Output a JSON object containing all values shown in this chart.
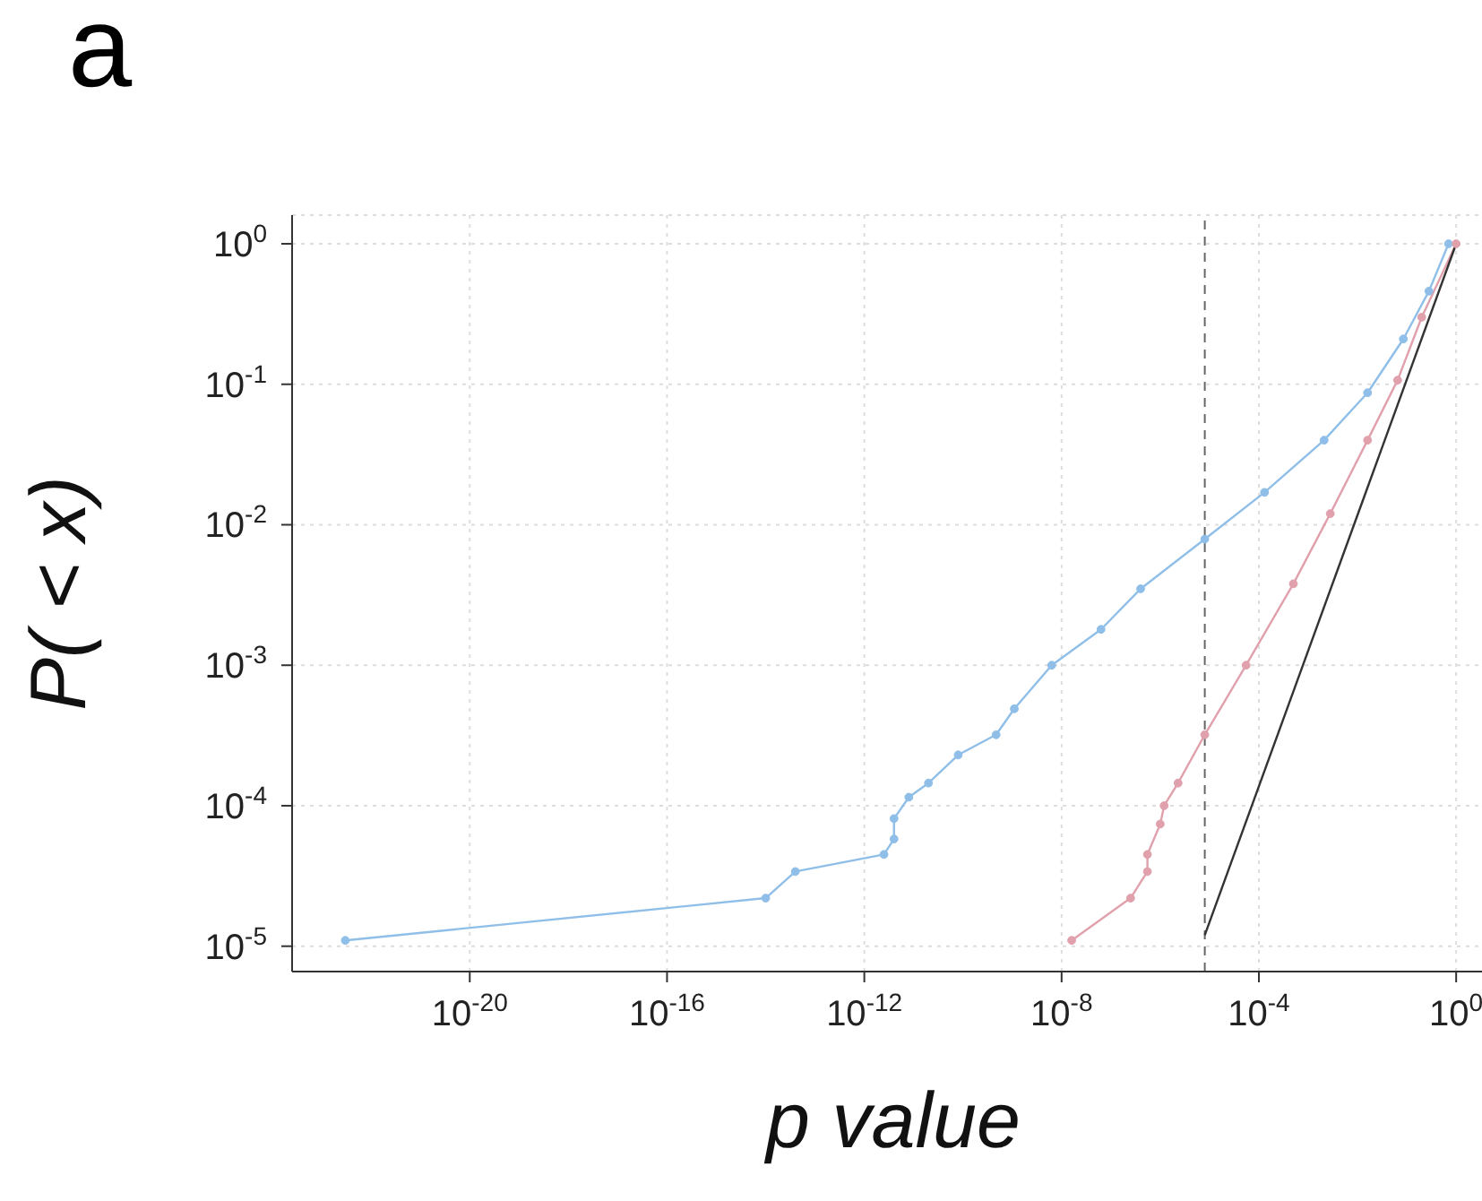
{
  "chart_data": {
    "type": "line",
    "xlabel": "p value",
    "ylabel": "P( < x)",
    "annotations": [
      "a"
    ],
    "log": "xy",
    "grid": true,
    "marker": "circle",
    "line_style": "solid",
    "xlim": [
      2.5e-24,
      6
    ],
    "ylim": [
      6.6e-06,
      1.6
    ],
    "xticks": [
      {
        "value": 1e-20,
        "label": "10$^{-20}$"
      },
      {
        "value": 1e-16,
        "label": "10$^{-16}$"
      },
      {
        "value": 1e-12,
        "label": "10$^{-12}$"
      },
      {
        "value": 1e-08,
        "label": "10$^{-8}$"
      },
      {
        "value": 0.0001,
        "label": "10$^{-4}$"
      },
      {
        "value": 1,
        "label": "10$^{0}$"
      }
    ],
    "yticks": [
      {
        "value": 1e-05,
        "label": "10$^{-5}$"
      },
      {
        "value": 0.0001,
        "label": "10$^{-4}$"
      },
      {
        "value": 0.001,
        "label": "10$^{-3}$"
      },
      {
        "value": 0.01,
        "label": "10$^{-2}$"
      },
      {
        "value": 0.1,
        "label": "10$^{-1}$"
      },
      {
        "value": 1,
        "label": "10$^{0}$"
      }
    ],
    "ref_lines": [
      {
        "axis": "x",
        "value": 8e-06,
        "color": "#666666",
        "line_style": "dashed"
      }
    ],
    "series": [
      {
        "color": "#8fbfe8",
        "x": [
          3e-23,
          1e-14,
          4e-14,
          2.5e-12,
          4e-12,
          4e-12,
          8e-12,
          2e-11,
          8e-11,
          4.7e-10,
          1.1e-09,
          6.3e-09,
          6.3e-08,
          4e-07,
          8e-06,
          0.00013,
          0.0021,
          0.016,
          0.085,
          0.28,
          0.7
        ],
        "values": [
          1.1e-05,
          2.2e-05,
          3.4e-05,
          4.5e-05,
          5.8e-05,
          8.1e-05,
          0.000115,
          0.000145,
          0.00023,
          0.00032,
          0.00049,
          0.001,
          0.0018,
          0.0035,
          0.0079,
          0.017,
          0.04,
          0.087,
          0.21,
          0.46,
          1
        ]
      },
      {
        "color": "#e0a0ac",
        "x": [
          1.6e-08,
          2.5e-07,
          5.5e-07,
          5.5e-07,
          1e-06,
          1.2e-06,
          2.3e-06,
          8e-06,
          5.5e-05,
          0.0005,
          0.0028,
          0.016,
          0.065,
          0.2,
          1
        ],
        "values": [
          1.1e-05,
          2.2e-05,
          3.4e-05,
          4.5e-05,
          7.4e-05,
          0.0001,
          0.000145,
          0.00032,
          0.001,
          0.0038,
          0.012,
          0.04,
          0.107,
          0.3,
          1
        ]
      },
      {
        "color": "#333333",
        "marker": "none",
        "x": [
          8e-06,
          1
        ],
        "values": [
          1.2e-05,
          1
        ]
      }
    ]
  }
}
